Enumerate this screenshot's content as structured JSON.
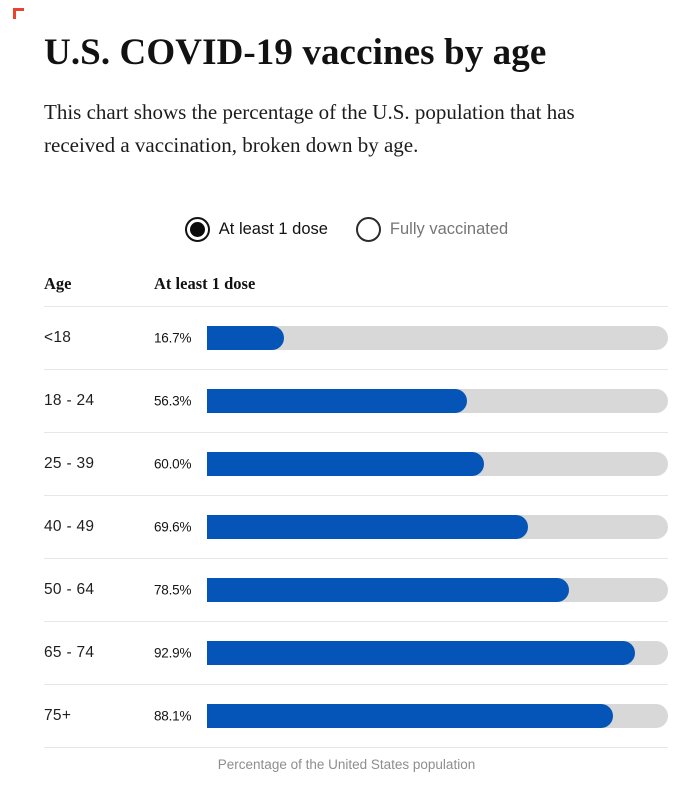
{
  "colors": {
    "bar_blue": "#0555B8",
    "track_gray": "#D8D8D8",
    "divider": "#E7E7E7",
    "muted_text": "#767676",
    "caption_gray": "#8E8E8E",
    "corner_marker_red": "#E8432C"
  },
  "header": {
    "title": "U.S. COVID-19 vaccines by age",
    "subtitle": "This chart shows the percentage of the U.S. population that has received a vaccination, broken down by age."
  },
  "controls": {
    "options": [
      {
        "label": "At least 1 dose",
        "selected": true
      },
      {
        "label": "Fully vaccinated",
        "selected": false
      }
    ]
  },
  "table": {
    "age_column_header": "Age",
    "value_column_header": "At least 1 dose"
  },
  "caption": "Percentage of the United States population",
  "chart_data": {
    "type": "bar",
    "orientation": "horizontal",
    "title": "U.S. COVID-19 vaccines by age",
    "categories": [
      "<18",
      "18 - 24",
      "25 - 39",
      "40 - 49",
      "50 - 64",
      "65 - 74",
      "75+"
    ],
    "series": [
      {
        "name": "At least 1 dose",
        "values": [
          16.7,
          56.3,
          60.0,
          69.6,
          78.5,
          92.9,
          88.1
        ],
        "labels": [
          "16.7%",
          "56.3%",
          "60.0%",
          "69.6%",
          "78.5%",
          "92.9%",
          "88.1%"
        ]
      }
    ],
    "xlabel": "Percentage of the United States population",
    "xlim": [
      0,
      100
    ],
    "grid": false,
    "legend_position": "top-center-radio-toggle",
    "bar_color": "#0555B8",
    "track_color": "#D8D8D8"
  }
}
